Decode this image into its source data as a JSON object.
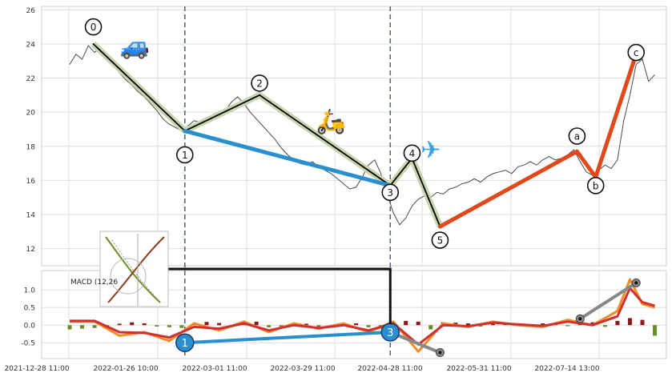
{
  "chart_data": [
    {
      "type": "line",
      "panel": "price",
      "x_ticks": [
        "2021-12-28 11:00",
        "2022-01-26 10:00",
        "2022-03-01 11:00",
        "2022-03-29 11:00",
        "2022-04-28 11:00",
        "2022-05-31 11:00",
        "2022-07-14 13:00"
      ],
      "xlim": [
        0,
        100
      ],
      "ylim": [
        11,
        26.2
      ],
      "y_ticks": [
        12,
        14,
        16,
        18,
        20,
        22,
        24,
        26
      ],
      "grid": true,
      "series": [
        {
          "color": "#4a4a4a",
          "x": [
            0,
            1,
            2,
            3,
            4,
            5,
            6,
            7,
            8,
            9,
            10,
            11,
            12,
            13,
            14,
            15,
            16,
            17,
            18,
            19,
            20,
            21,
            22,
            23,
            24,
            25,
            26,
            27,
            28,
            29,
            30,
            31,
            32,
            33,
            34,
            35,
            36,
            37,
            38,
            39,
            40,
            41,
            42,
            43,
            44,
            45,
            46,
            47,
            48,
            49,
            50,
            51,
            52,
            53,
            54,
            55,
            56,
            57,
            58,
            59,
            60,
            61,
            62,
            63,
            64,
            65,
            66,
            67,
            68,
            69,
            70,
            71,
            72,
            73,
            74,
            75,
            76,
            77,
            78,
            79,
            80,
            81,
            82,
            83,
            84,
            85,
            86,
            87,
            88,
            89,
            90,
            91,
            92,
            93,
            94
          ],
          "values": [
            22.8,
            23.4,
            23.1,
            23.9,
            23.5,
            23.8,
            23.2,
            22.9,
            22.3,
            21.9,
            21.6,
            21.2,
            20.9,
            20.5,
            20.1,
            19.6,
            19.3,
            19.1,
            18.9,
            19.2,
            19.5,
            19.4,
            19.7,
            19.6,
            19.8,
            20.1,
            20.6,
            20.9,
            20.5,
            20.0,
            19.6,
            19.2,
            18.8,
            18.4,
            17.9,
            17.5,
            17.2,
            17.0,
            16.9,
            17.1,
            16.8,
            16.6,
            16.4,
            16.1,
            15.8,
            15.5,
            15.6,
            16.2,
            16.9,
            17.2,
            16.4,
            15.2,
            14.1,
            13.4,
            13.8,
            14.5,
            14.9,
            15.1,
            15.0,
            15.3,
            15.2,
            15.5,
            15.6,
            15.8,
            15.9,
            16.1,
            15.9,
            16.2,
            16.4,
            16.5,
            16.6,
            16.4,
            16.8,
            16.9,
            17.1,
            16.9,
            17.2,
            17.4,
            17.2,
            17.3,
            17.5,
            17.8,
            17.1,
            16.5,
            16.3,
            16.6,
            16.9,
            16.7,
            17.2,
            19.5,
            21.0,
            22.8,
            23.1,
            21.8,
            22.2
          ]
        }
      ],
      "wave_segments": [
        {
          "kind": "impulse",
          "color": "#000000",
          "halo": "#c8d6b0",
          "points": [
            [
              3.8,
              24.0
            ],
            [
              18.5,
              18.9
            ],
            [
              30.5,
              21.0
            ],
            [
              51.5,
              15.7
            ],
            [
              55.0,
              17.3
            ],
            [
              59.5,
              13.3
            ]
          ]
        },
        {
          "kind": "trend",
          "color": "#2a8fce",
          "points": [
            [
              18.5,
              18.9
            ],
            [
              51.5,
              15.7
            ]
          ]
        },
        {
          "kind": "correction",
          "color": "#e2491a",
          "points": [
            [
              59.5,
              13.3
            ],
            [
              81.5,
              17.7
            ],
            [
              84.5,
              16.2
            ],
            [
              91.0,
              23.4
            ]
          ]
        }
      ],
      "wave_labels": [
        {
          "text": "0",
          "x": 3.8,
          "y": 25.0
        },
        {
          "text": "1",
          "x": 18.5,
          "y": 17.5
        },
        {
          "text": "2",
          "x": 30.5,
          "y": 21.7
        },
        {
          "text": "3",
          "x": 51.5,
          "y": 15.3
        },
        {
          "text": "4",
          "x": 55.0,
          "y": 17.6
        },
        {
          "text": "5",
          "x": 59.5,
          "y": 12.5
        },
        {
          "text": "a",
          "x": 81.5,
          "y": 18.6
        },
        {
          "text": "b",
          "x": 84.5,
          "y": 15.7
        },
        {
          "text": "c",
          "x": 91.0,
          "y": 23.5
        }
      ],
      "vertical_lines": [
        18.5,
        51.5
      ],
      "icons": [
        {
          "name": "car-icon",
          "glyph": "🚙",
          "x": 10.5,
          "y": 23.4
        },
        {
          "name": "scooter-icon",
          "glyph": "🛵",
          "x": 42.0,
          "y": 19.0
        },
        {
          "name": "airplane-icon",
          "glyph": "✈",
          "x": 58.0,
          "y": 17.3
        }
      ]
    },
    {
      "type": "bar",
      "panel": "macd",
      "annotation": "MACD (12,26",
      "xlim": [
        0,
        100
      ],
      "ylim": [
        -0.95,
        1.55
      ],
      "y_ticks": [
        -0.5,
        0.0,
        0.5,
        1.0
      ],
      "grid": true,
      "histogram": {
        "x": [
          0,
          2,
          4,
          6,
          8,
          10,
          12,
          14,
          16,
          18,
          20,
          22,
          24,
          26,
          28,
          30,
          32,
          34,
          36,
          38,
          40,
          42,
          44,
          46,
          48,
          50,
          52,
          54,
          56,
          58,
          60,
          62,
          64,
          66,
          68,
          70,
          72,
          74,
          76,
          78,
          80,
          82,
          84,
          86,
          88,
          90,
          92,
          94
        ],
        "values": [
          -0.12,
          -0.1,
          -0.08,
          -0.06,
          0.04,
          0.08,
          0.05,
          -0.04,
          -0.06,
          -0.08,
          0.05,
          0.09,
          0.06,
          -0.05,
          0.08,
          0.1,
          -0.06,
          -0.09,
          0.06,
          0.04,
          -0.05,
          -0.04,
          0.03,
          0.05,
          -0.06,
          -0.1,
          -0.15,
          0.12,
          0.1,
          -0.12,
          0.08,
          0.07,
          0.05,
          -0.04,
          0.06,
          0.05,
          0.04,
          -0.03,
          0.05,
          0.04,
          -0.03,
          0.06,
          0.08,
          -0.05,
          0.12,
          0.2,
          0.15,
          -0.3
        ],
        "pos_color": "#8b1a1a",
        "neg_color": "#6b8e23"
      },
      "series": [
        {
          "color": "#f28c28",
          "x": [
            0,
            4,
            8,
            12,
            16,
            20,
            24,
            28,
            32,
            36,
            40,
            44,
            48,
            52,
            56,
            60,
            64,
            68,
            72,
            76,
            80,
            84,
            88,
            90,
            92,
            94
          ],
          "values": [
            0.1,
            0.1,
            -0.3,
            -0.2,
            -0.45,
            0.05,
            -0.15,
            0.1,
            -0.2,
            0.05,
            -0.1,
            0.05,
            -0.2,
            0.1,
            -0.75,
            0.05,
            -0.05,
            0.1,
            0.0,
            -0.05,
            0.15,
            0.0,
            0.4,
            1.3,
            0.6,
            0.5
          ]
        },
        {
          "color": "#d03030",
          "x": [
            0,
            4,
            8,
            12,
            16,
            20,
            24,
            28,
            32,
            36,
            40,
            44,
            48,
            52,
            56,
            60,
            64,
            68,
            72,
            76,
            80,
            84,
            88,
            90,
            92,
            94
          ],
          "values": [
            0.12,
            0.12,
            -0.2,
            -0.22,
            -0.35,
            -0.05,
            -0.1,
            0.05,
            -0.15,
            0.0,
            -0.08,
            0.0,
            -0.15,
            0.05,
            -0.55,
            0.0,
            -0.03,
            0.07,
            0.02,
            -0.02,
            0.1,
            0.0,
            0.25,
            1.05,
            0.65,
            0.55
          ]
        }
      ],
      "wave_segments": [
        {
          "kind": "trend",
          "color": "#2a8fce",
          "points": [
            [
              18.5,
              -0.5
            ],
            [
              51.5,
              -0.2
            ]
          ]
        },
        {
          "kind": "correction",
          "color": "#888888",
          "points": [
            [
              51.5,
              -0.2
            ],
            [
              59.5,
              -0.78
            ]
          ]
        },
        {
          "kind": "correction",
          "color": "#888888",
          "points": [
            [
              82.0,
              0.18
            ],
            [
              91.0,
              1.2
            ]
          ]
        }
      ],
      "wave_labels": [
        {
          "text": "1",
          "x": 18.5,
          "y": -0.5
        },
        {
          "text": "3",
          "x": 51.5,
          "y": -0.2
        }
      ]
    }
  ]
}
